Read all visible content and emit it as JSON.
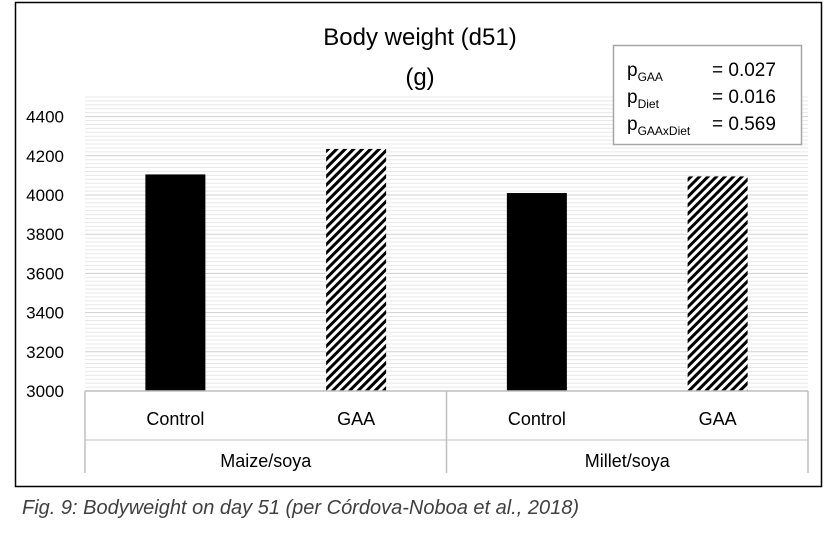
{
  "chart_data": {
    "type": "bar",
    "title": "Body weight (d51)",
    "subtitle": "(g)",
    "groups": [
      "Maize/soya",
      "Millet/soya"
    ],
    "categories": [
      "Control",
      "GAA",
      "Control",
      "GAA"
    ],
    "bars": [
      {
        "group": "Maize/soya",
        "label": "Control",
        "value": 4105,
        "fill": "solid"
      },
      {
        "group": "Maize/soya",
        "label": "GAA",
        "value": 4235,
        "fill": "hatched"
      },
      {
        "group": "Millet/soya",
        "label": "Control",
        "value": 4010,
        "fill": "solid"
      },
      {
        "group": "Millet/soya",
        "label": "GAA",
        "value": 4095,
        "fill": "hatched"
      }
    ],
    "yticks": [
      "3000",
      "3200",
      "3400",
      "3600",
      "3800",
      "4000",
      "4200",
      "4400"
    ],
    "ylim": [
      3000,
      4500
    ],
    "grid": true,
    "legend": "none",
    "stats": [
      {
        "symbol": "p",
        "sub": "GAA",
        "value": "= 0.027"
      },
      {
        "symbol": "p",
        "sub": "Diet",
        "value": "= 0.016"
      },
      {
        "symbol": "p",
        "sub": "GAAxDiet",
        "value": "= 0.569"
      }
    ],
    "colors": {
      "bar": "#000000",
      "grid": "#d9d9d9",
      "axis": "#bfbfbf"
    }
  },
  "caption": "Fig. 9: Bodyweight on day 51 (per Córdova-Noboa et al., 2018)"
}
